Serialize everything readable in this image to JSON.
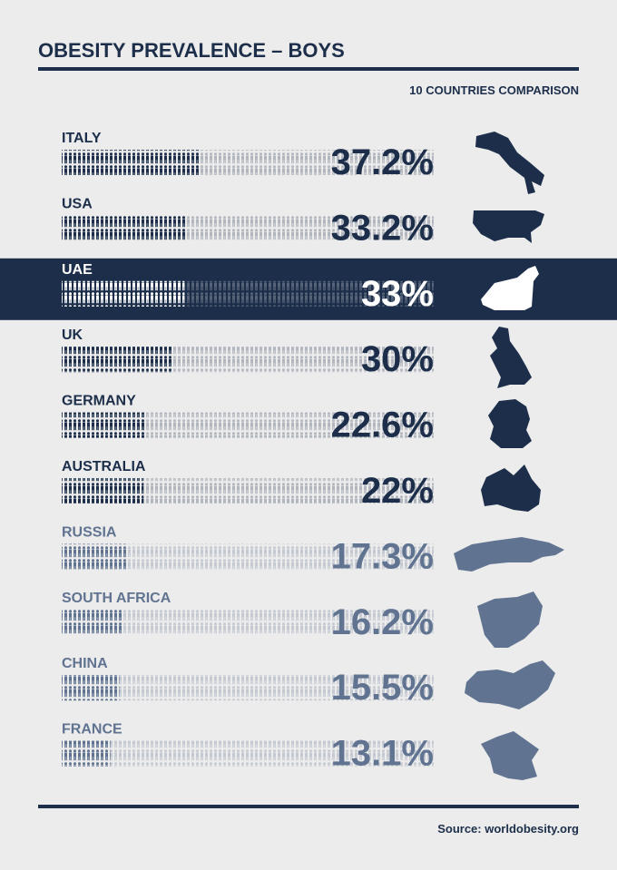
{
  "chart_data": {
    "type": "pictogram",
    "title": "OBESITY PREVALENCE – BOYS",
    "subtitle": "10 COUNTRIES COMPARISON",
    "source": "Source: worldobesity.org",
    "categories": [
      "ITALY",
      "USA",
      "UAE",
      "UK",
      "GERMANY",
      "AUSTRALIA",
      "RUSSIA",
      "SOUTH AFRICA",
      "CHINA",
      "FRANCE"
    ],
    "values": [
      37.2,
      33.2,
      33,
      30,
      22.6,
      22,
      17.3,
      16.2,
      15.5,
      13.1
    ],
    "value_labels": [
      "37.2%",
      "33.2%",
      "33%",
      "30%",
      "22.6%",
      "22%",
      "17.3%",
      "16.2%",
      "15.5%",
      "13.1%"
    ],
    "colors": [
      "#1c2e4a",
      "#1c2e4a",
      "#ffffff",
      "#1c2e4a",
      "#1c2e4a",
      "#1c2e4a",
      "#607390",
      "#607390",
      "#607390",
      "#607390"
    ],
    "highlight": 2,
    "highlight_color": "#1c2e4a",
    "xlim": [
      0,
      100
    ]
  }
}
